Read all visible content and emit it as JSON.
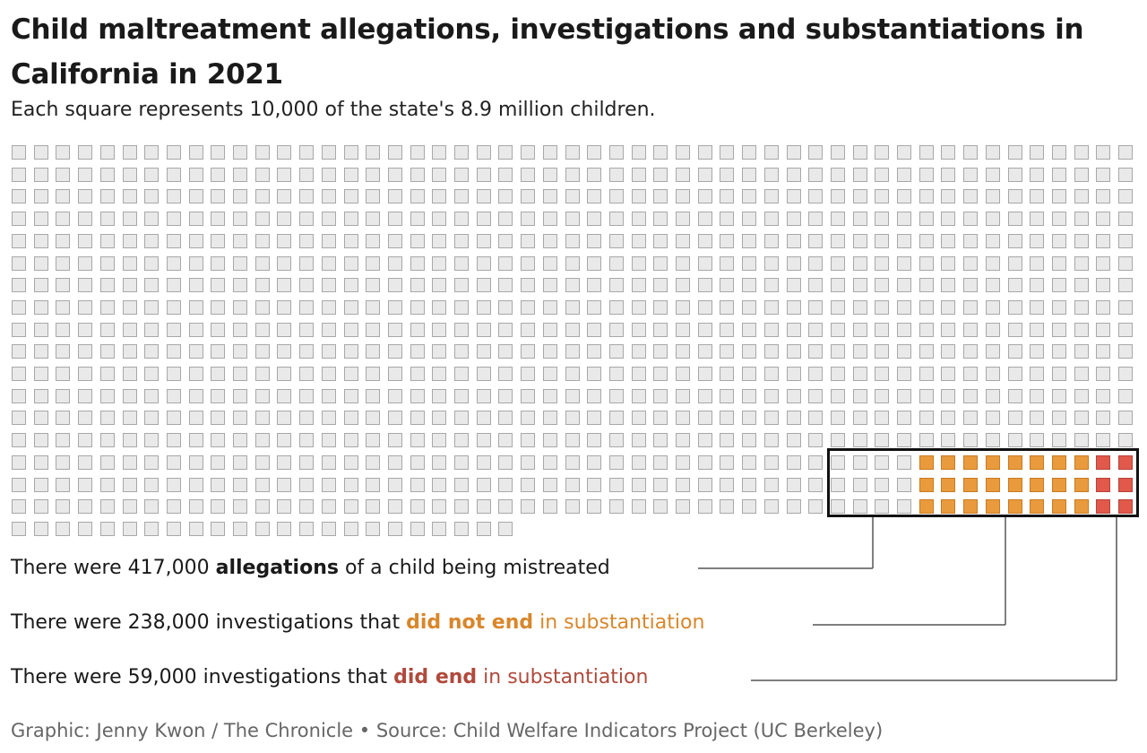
{
  "title": "Child maltreatment allegations, investigations and substantiations in California in 2021",
  "subtitle": "Each square represents 10,000 of the state's 8.9 million children.",
  "chart_data": {
    "type": "waffle",
    "unit_per_square": 10000,
    "total_children": 8900000,
    "total_squares": 890,
    "columns": 51,
    "categories": [
      {
        "name": "allegations",
        "value": 417000,
        "squares": 42
      },
      {
        "name": "investigations not substantiated",
        "value": 238000,
        "squares": 24
      },
      {
        "name": "investigations substantiated",
        "value": 59000,
        "squares": 6
      }
    ],
    "colors": {
      "empty": "#e9e9e9",
      "not_substantiated": "#e99a3c",
      "substantiated": "#e0594a"
    }
  },
  "annotations": {
    "allegations": {
      "pre": "There were 417,000 ",
      "bold": "allegations",
      "post": " of a child being mistreated"
    },
    "not_substantiated": {
      "pre": "There were 238,000 investigations that ",
      "bold": "did not end",
      "post": " in substantiation"
    },
    "substantiated": {
      "pre": "There were 59,000 investigations that ",
      "bold": "did end",
      "post": " in substantiation"
    }
  },
  "footer": "Graphic: Jenny Kwon / The Chronicle • Source: Child Welfare Indicators Project (UC Berkeley)"
}
